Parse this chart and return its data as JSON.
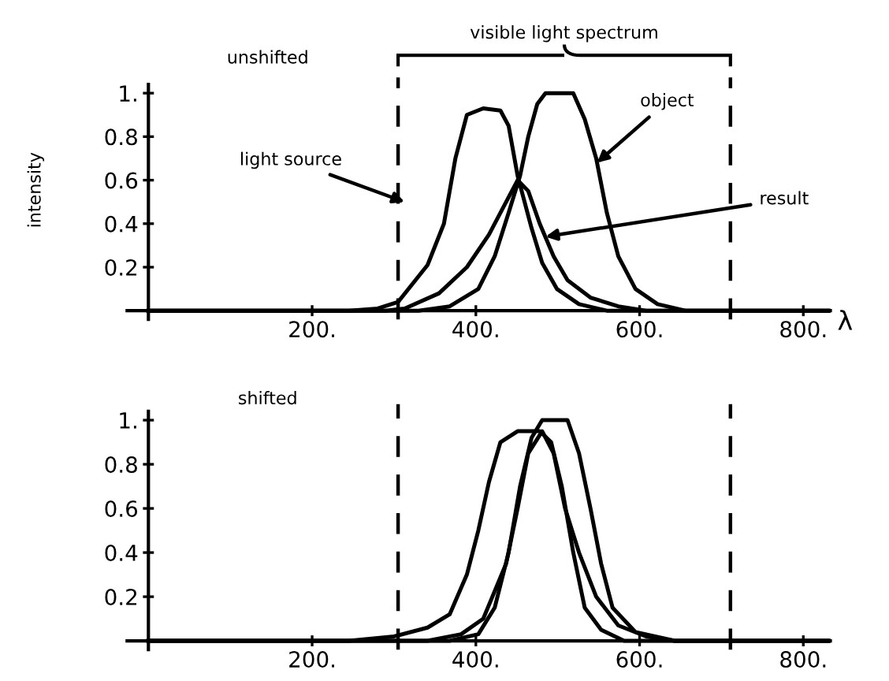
{
  "chart_data": [
    {
      "type": "line",
      "title": "unshifted",
      "ylabel": "intensity",
      "xlabel": "λ",
      "xlim": [
        -26,
        833
      ],
      "ylim": [
        -0.04,
        1.04
      ],
      "xticks": [
        {
          "value": 200,
          "label": "200."
        },
        {
          "value": 400,
          "label": "400."
        },
        {
          "value": 600,
          "label": "600."
        },
        {
          "value": 800,
          "label": "800."
        }
      ],
      "yticks": [
        {
          "value": 0.2,
          "label": "0.2"
        },
        {
          "value": 0.4,
          "label": "0.4"
        },
        {
          "value": 0.6,
          "label": "0.6"
        },
        {
          "value": 0.8,
          "label": "0.8"
        },
        {
          "value": 1.0,
          "label": "1."
        }
      ],
      "grid": false,
      "legend": false,
      "series": [
        {
          "color": "#000000",
          "x": [
            0,
            245,
            280,
            305,
            341,
            361,
            375,
            389,
            409,
            430,
            440,
            451,
            468,
            481,
            499,
            526,
            560,
            833
          ],
          "values": [
            0,
            0,
            0.01,
            0.04,
            0.21,
            0.4,
            0.7,
            0.9,
            0.93,
            0.92,
            0.85,
            0.62,
            0.38,
            0.22,
            0.1,
            0.03,
            0,
            0
          ]
        },
        {
          "color": "#000000",
          "x": [
            0,
            330,
            368,
            403,
            423,
            440,
            454,
            464,
            475,
            485,
            499,
            519,
            533,
            547,
            560,
            574,
            595,
            622,
            656,
            833
          ],
          "values": [
            0,
            0,
            0.02,
            0.1,
            0.25,
            0.45,
            0.62,
            0.8,
            0.95,
            1.0,
            1.0,
            1.0,
            0.88,
            0.7,
            0.45,
            0.25,
            0.1,
            0.03,
            0,
            0
          ]
        },
        {
          "color": "#000000",
          "x": [
            0,
            290,
            313,
            355,
            389,
            416,
            437,
            451,
            464,
            478,
            495,
            512,
            540,
            574,
            608,
            833
          ],
          "values": [
            0,
            0,
            0.01,
            0.08,
            0.2,
            0.35,
            0.5,
            0.6,
            0.55,
            0.4,
            0.25,
            0.14,
            0.06,
            0.02,
            0,
            0
          ]
        }
      ],
      "ref_lines": [
        {
          "axis": "x",
          "value": 305,
          "line_style": "dashed",
          "color": "#000000"
        },
        {
          "axis": "x",
          "value": 711,
          "line_style": "dashed",
          "color": "#000000"
        }
      ],
      "annotations": [
        "visible light spectrum",
        {
          "text": "light source",
          "x": 313,
          "y": 0.5
        },
        {
          "text": "object",
          "x": 548,
          "y": 0.68
        },
        {
          "text": "result",
          "x": 485,
          "y": 0.34
        }
      ]
    },
    {
      "type": "line",
      "title": "shifted",
      "xlim": [
        -26,
        833
      ],
      "ylim": [
        -0.04,
        1.04
      ],
      "xticks": [
        {
          "value": 200,
          "label": "200."
        },
        {
          "value": 400,
          "label": "400."
        },
        {
          "value": 600,
          "label": "600."
        },
        {
          "value": 800,
          "label": "800."
        }
      ],
      "yticks": [
        {
          "value": 0.2,
          "label": "0.2"
        },
        {
          "value": 0.4,
          "label": "0.4"
        },
        {
          "value": 0.6,
          "label": "0.6"
        },
        {
          "value": 0.8,
          "label": "0.8"
        },
        {
          "value": 1.0,
          "label": "1."
        }
      ],
      "grid": false,
      "legend": false,
      "series": [
        {
          "color": "#000000",
          "x": [
            0,
            245,
            300,
            341,
            368,
            389,
            403,
            416,
            430,
            451,
            478,
            492,
            505,
            519,
            533,
            553,
            581,
            833
          ],
          "values": [
            0,
            0,
            0.02,
            0.06,
            0.12,
            0.3,
            0.5,
            0.72,
            0.9,
            0.95,
            0.95,
            0.9,
            0.7,
            0.4,
            0.15,
            0.05,
            0,
            0
          ]
        },
        {
          "color": "#000000",
          "x": [
            0,
            368,
            403,
            423,
            440,
            454,
            468,
            481,
            512,
            526,
            540,
            553,
            567,
            595,
            643,
            833
          ],
          "values": [
            0,
            0,
            0.03,
            0.15,
            0.4,
            0.7,
            0.92,
            1.0,
            1.0,
            0.85,
            0.6,
            0.35,
            0.15,
            0.04,
            0,
            0
          ]
        },
        {
          "color": "#000000",
          "x": [
            0,
            341,
            382,
            409,
            437,
            451,
            464,
            481,
            495,
            509,
            526,
            547,
            574,
            608,
            643,
            833
          ],
          "values": [
            0,
            0,
            0.03,
            0.1,
            0.35,
            0.6,
            0.85,
            0.95,
            0.85,
            0.6,
            0.4,
            0.2,
            0.07,
            0.02,
            0,
            0
          ]
        }
      ],
      "ref_lines": [
        {
          "axis": "x",
          "value": 305,
          "line_style": "dashed",
          "color": "#000000"
        },
        {
          "axis": "x",
          "value": 711,
          "line_style": "dashed",
          "color": "#000000"
        }
      ]
    }
  ]
}
